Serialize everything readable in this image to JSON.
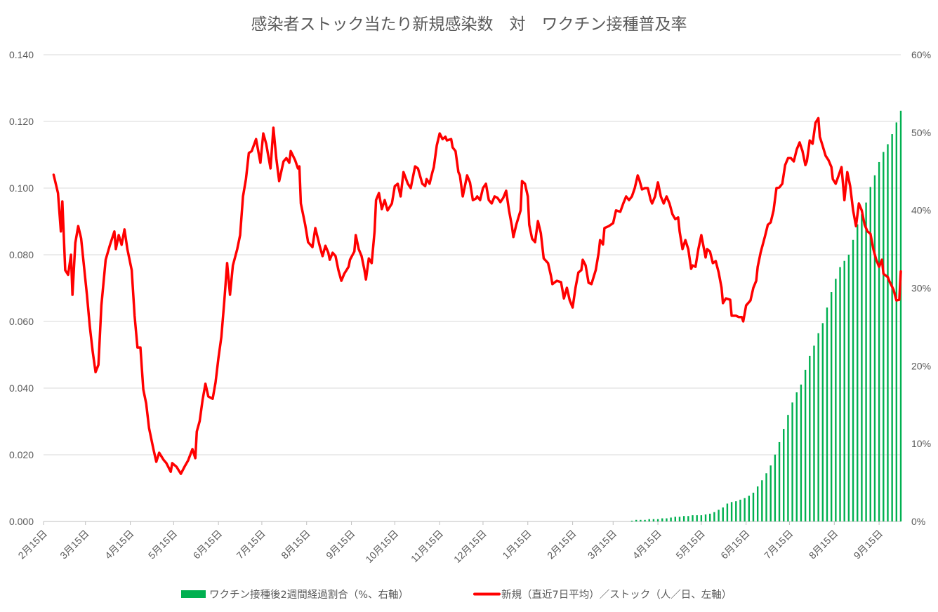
{
  "chart_data": {
    "type": "bar+line",
    "title": "感染者ストック当たり新規感染数　対　ワクチン接種普及率",
    "x_tick_labels": [
      "2月15日",
      "3月15日",
      "4月15日",
      "5月15日",
      "6月15日",
      "7月15日",
      "8月15日",
      "9月15日",
      "10月15日",
      "11月15日",
      "12月15日",
      "1月15日",
      "2月15日",
      "3月15日",
      "4月15日",
      "5月15日",
      "6月15日",
      "7月15日",
      "8月15日",
      "9月15日"
    ],
    "x_tick_dates": [
      "2020-02-15",
      "2020-03-15",
      "2020-04-15",
      "2020-05-15",
      "2020-06-15",
      "2020-07-15",
      "2020-08-15",
      "2020-09-15",
      "2020-10-15",
      "2020-11-15",
      "2020-12-15",
      "2021-01-15",
      "2021-02-15",
      "2021-03-15",
      "2021-04-15",
      "2021-05-15",
      "2021-06-15",
      "2021-07-15",
      "2021-08-15",
      "2021-09-15"
    ],
    "xlim": [
      "2020-02-15",
      "2021-09-30"
    ],
    "y_left": {
      "ylim": [
        0,
        0.14
      ],
      "tick_labels": [
        "0.000",
        "0.020",
        "0.040",
        "0.060",
        "0.080",
        "0.100",
        "0.120",
        "0.140"
      ]
    },
    "y_right": {
      "ylim": [
        0,
        60
      ],
      "tick_labels": [
        "0%",
        "10%",
        "20%",
        "30%",
        "40%",
        "50%",
        "60%"
      ]
    },
    "grid": true,
    "legend_position": "bottom",
    "colors": {
      "bars": "#00b050",
      "line": "#ff0000",
      "grid": "#d9d9d9",
      "text": "#595959"
    },
    "series": [
      {
        "name": "ワクチン接種後2週間経過割合（%、右軸）",
        "type": "bar",
        "axis": "right",
        "x": [
          "2021-03-28",
          "2021-03-31",
          "2021-04-03",
          "2021-04-06",
          "2021-04-09",
          "2021-04-12",
          "2021-04-15",
          "2021-04-18",
          "2021-04-21",
          "2021-04-24",
          "2021-04-27",
          "2021-04-30",
          "2021-05-03",
          "2021-05-06",
          "2021-05-09",
          "2021-05-12",
          "2021-05-15",
          "2021-05-18",
          "2021-05-21",
          "2021-05-24",
          "2021-05-27",
          "2021-05-30",
          "2021-06-02",
          "2021-06-05",
          "2021-06-08",
          "2021-06-11",
          "2021-06-14",
          "2021-06-17",
          "2021-06-20",
          "2021-06-23",
          "2021-06-26",
          "2021-06-29",
          "2021-07-02",
          "2021-07-05",
          "2021-07-08",
          "2021-07-11",
          "2021-07-14",
          "2021-07-17",
          "2021-07-20",
          "2021-07-23",
          "2021-07-26",
          "2021-07-29",
          "2021-08-01",
          "2021-08-04",
          "2021-08-07",
          "2021-08-10",
          "2021-08-13",
          "2021-08-16",
          "2021-08-19",
          "2021-08-22",
          "2021-08-25",
          "2021-08-28",
          "2021-08-31",
          "2021-09-03",
          "2021-09-06",
          "2021-09-09",
          "2021-09-12",
          "2021-09-15",
          "2021-09-18",
          "2021-09-21",
          "2021-09-24",
          "2021-09-27",
          "2021-09-30"
        ],
        "values": [
          0.1,
          0.2,
          0.2,
          0.2,
          0.3,
          0.3,
          0.3,
          0.4,
          0.4,
          0.5,
          0.6,
          0.6,
          0.7,
          0.7,
          0.8,
          0.8,
          0.8,
          0.9,
          1.0,
          1.2,
          1.5,
          1.8,
          2.3,
          2.5,
          2.6,
          2.8,
          3.0,
          3.3,
          3.7,
          4.5,
          5.3,
          6.2,
          7.2,
          8.6,
          10.2,
          11.9,
          13.7,
          15.3,
          16.6,
          17.6,
          19.5,
          21.3,
          22.6,
          24.2,
          25.5,
          27.5,
          29.5,
          31.2,
          32.7,
          33.5,
          34.3,
          36.2,
          38.2,
          39.5,
          41.0,
          43.0,
          44.5,
          46.2,
          47.5,
          48.5,
          49.8,
          51.3,
          52.8
        ]
      },
      {
        "name": "新規（直近7日平均）／ストック（人／日、左軸）",
        "type": "line",
        "axis": "left",
        "x": [
          "2020-02-22",
          "2020-02-25",
          "2020-02-27",
          "2020-02-28",
          "2020-03-01",
          "2020-03-03",
          "2020-03-05",
          "2020-03-06",
          "2020-03-08",
          "2020-03-10",
          "2020-03-12",
          "2020-03-14",
          "2020-03-16",
          "2020-03-18",
          "2020-03-20",
          "2020-03-22",
          "2020-03-24",
          "2020-03-26",
          "2020-03-29",
          "2020-04-01",
          "2020-04-04",
          "2020-04-05",
          "2020-04-07",
          "2020-04-09",
          "2020-04-11",
          "2020-04-13",
          "2020-04-16",
          "2020-04-18",
          "2020-04-20",
          "2020-04-22",
          "2020-04-24",
          "2020-04-26",
          "2020-04-28",
          "2020-05-01",
          "2020-05-03",
          "2020-05-05",
          "2020-05-08",
          "2020-05-10",
          "2020-05-13",
          "2020-05-14",
          "2020-05-17",
          "2020-05-20",
          "2020-05-23",
          "2020-05-25",
          "2020-05-28",
          "2020-05-30",
          "2020-05-31",
          "2020-06-02",
          "2020-06-04",
          "2020-06-06",
          "2020-06-08",
          "2020-06-11",
          "2020-06-13",
          "2020-06-15",
          "2020-06-17",
          "2020-06-19",
          "2020-06-21",
          "2020-06-23",
          "2020-06-25",
          "2020-06-28",
          "2020-06-30",
          "2020-07-02",
          "2020-07-04",
          "2020-07-06",
          "2020-07-08",
          "2020-07-11",
          "2020-07-14",
          "2020-07-16",
          "2020-07-18",
          "2020-07-21",
          "2020-07-23",
          "2020-07-25",
          "2020-07-27",
          "2020-07-30",
          "2020-08-01",
          "2020-08-03",
          "2020-08-04",
          "2020-08-07",
          "2020-08-09",
          "2020-08-10",
          "2020-08-11",
          "2020-08-14",
          "2020-08-16",
          "2020-08-19",
          "2020-08-21",
          "2020-08-24",
          "2020-08-26",
          "2020-08-28",
          "2020-08-30",
          "2020-08-31",
          "2020-09-02",
          "2020-09-04",
          "2020-09-06",
          "2020-09-08",
          "2020-09-10",
          "2020-09-13",
          "2020-09-14",
          "2020-09-17",
          "2020-09-18",
          "2020-09-20",
          "2020-09-22",
          "2020-09-24",
          "2020-09-25",
          "2020-09-27",
          "2020-09-29",
          "2020-10-01",
          "2020-10-02",
          "2020-10-04",
          "2020-10-06",
          "2020-10-08",
          "2020-10-10",
          "2020-10-13",
          "2020-10-15",
          "2020-10-17",
          "2020-10-19",
          "2020-10-21",
          "2020-10-24",
          "2020-10-26",
          "2020-10-29",
          "2020-10-31",
          "2020-11-03",
          "2020-11-05",
          "2020-11-06",
          "2020-11-08",
          "2020-11-10",
          "2020-11-11",
          "2020-11-13",
          "2020-11-15",
          "2020-11-17",
          "2020-11-19",
          "2020-11-20",
          "2020-11-23",
          "2020-11-24",
          "2020-11-26",
          "2020-11-28",
          "2020-11-29",
          "2020-12-01",
          "2020-12-04",
          "2020-12-06",
          "2020-12-08",
          "2020-12-10",
          "2020-12-11",
          "2020-12-13",
          "2020-12-15",
          "2020-12-17",
          "2020-12-19",
          "2020-12-21",
          "2020-12-23",
          "2020-12-25",
          "2020-12-27",
          "2020-12-29",
          "2020-12-31",
          "2021-01-02",
          "2021-01-04",
          "2021-01-05",
          "2021-01-07",
          "2021-01-10",
          "2021-01-11",
          "2021-01-13",
          "2021-01-15",
          "2021-01-16",
          "2021-01-18",
          "2021-01-20",
          "2021-01-22",
          "2021-01-24",
          "2021-01-26",
          "2021-01-29",
          "2021-01-31",
          "2021-02-01",
          "2021-02-04",
          "2021-02-07",
          "2021-02-09",
          "2021-02-11",
          "2021-02-13",
          "2021-02-15",
          "2021-02-17",
          "2021-02-19",
          "2021-02-21",
          "2021-02-22",
          "2021-02-24",
          "2021-02-26",
          "2021-02-28",
          "2021-03-03",
          "2021-03-05",
          "2021-03-06",
          "2021-03-08",
          "2021-03-09",
          "2021-03-12",
          "2021-03-15",
          "2021-03-17",
          "2021-03-20",
          "2021-03-22",
          "2021-03-24",
          "2021-03-26",
          "2021-03-28",
          "2021-03-30",
          "2021-04-01",
          "2021-04-02",
          "2021-04-04",
          "2021-04-06",
          "2021-04-08",
          "2021-04-10",
          "2021-04-11",
          "2021-04-13",
          "2021-04-15",
          "2021-04-17",
          "2021-04-19",
          "2021-04-21",
          "2021-04-23",
          "2021-04-25",
          "2021-04-27",
          "2021-04-29",
          "2021-04-30",
          "2021-05-02",
          "2021-05-04",
          "2021-05-06",
          "2021-05-08",
          "2021-05-09",
          "2021-05-11",
          "2021-05-13",
          "2021-05-15",
          "2021-05-18",
          "2021-05-19",
          "2021-05-21",
          "2021-05-23",
          "2021-05-25",
          "2021-05-27",
          "2021-05-29",
          "2021-05-30",
          "2021-06-01",
          "2021-06-04",
          "2021-06-05",
          "2021-06-08",
          "2021-06-10",
          "2021-06-12",
          "2021-06-13",
          "2021-06-15",
          "2021-06-18",
          "2021-06-20",
          "2021-06-22",
          "2021-06-23",
          "2021-06-25",
          "2021-06-28",
          "2021-06-30",
          "2021-07-02",
          "2021-07-04",
          "2021-07-06",
          "2021-07-08",
          "2021-07-10",
          "2021-07-12",
          "2021-07-14",
          "2021-07-16",
          "2021-07-18",
          "2021-07-20",
          "2021-07-22",
          "2021-07-24",
          "2021-07-26",
          "2021-07-27",
          "2021-07-29",
          "2021-07-31",
          "2021-08-02",
          "2021-08-04",
          "2021-08-05",
          "2021-08-07",
          "2021-08-09",
          "2021-08-11",
          "2021-08-13",
          "2021-08-14",
          "2021-08-16",
          "2021-08-18",
          "2021-08-20",
          "2021-08-22",
          "2021-08-24",
          "2021-08-26",
          "2021-08-28",
          "2021-08-30",
          "2021-09-01",
          "2021-09-03",
          "2021-09-05",
          "2021-09-07",
          "2021-09-09",
          "2021-09-11",
          "2021-09-13",
          "2021-09-15",
          "2021-09-17",
          "2021-09-18",
          "2021-09-21",
          "2021-09-22",
          "2021-09-25",
          "2021-09-27",
          "2021-09-29",
          "2021-09-30"
        ],
        "values": [
          0.104,
          0.0985,
          0.087,
          0.096,
          0.0754,
          0.074,
          0.08,
          0.068,
          0.0836,
          0.0886,
          0.085,
          0.0764,
          0.068,
          0.0585,
          0.051,
          0.0448,
          0.047,
          0.0648,
          0.0785,
          0.083,
          0.087,
          0.0817,
          0.0859,
          0.083,
          0.0876,
          0.0817,
          0.0754,
          0.0617,
          0.0522,
          0.0522,
          0.0396,
          0.0354,
          0.028,
          0.0217,
          0.0179,
          0.0206,
          0.0185,
          0.0175,
          0.0149,
          0.0175,
          0.0164,
          0.0143,
          0.0168,
          0.0183,
          0.0217,
          0.019,
          0.027,
          0.0301,
          0.0364,
          0.0413,
          0.0375,
          0.0368,
          0.0417,
          0.049,
          0.0554,
          0.0659,
          0.0775,
          0.068,
          0.0768,
          0.0817,
          0.0859,
          0.0975,
          0.1027,
          0.1105,
          0.1111,
          0.1147,
          0.1076,
          0.1164,
          0.1133,
          0.1059,
          0.1181,
          0.109,
          0.1021,
          0.108,
          0.109,
          0.1076,
          0.1111,
          0.1084,
          0.1059,
          0.1065,
          0.0954,
          0.089,
          0.0838,
          0.0823,
          0.088,
          0.0827,
          0.0796,
          0.0827,
          0.0806,
          0.0785,
          0.0806,
          0.0796,
          0.0754,
          0.0722,
          0.0743,
          0.0764,
          0.0785,
          0.081,
          0.0859,
          0.0817,
          0.0796,
          0.0754,
          0.0726,
          0.0789,
          0.0775,
          0.087,
          0.0964,
          0.0985,
          0.0937,
          0.0964,
          0.0933,
          0.0954,
          0.1006,
          0.1013,
          0.0975,
          0.1048,
          0.1013,
          0.1,
          0.1065,
          0.1059,
          0.1013,
          0.1006,
          0.1027,
          0.1013,
          0.1048,
          0.1063,
          0.1128,
          0.1164,
          0.1147,
          0.1154,
          0.1143,
          0.1147,
          0.1122,
          0.1111,
          0.1048,
          0.1038,
          0.0975,
          0.1038,
          0.1017,
          0.0964,
          0.0968,
          0.0975,
          0.0964,
          0.1,
          0.1013,
          0.0964,
          0.0954,
          0.0975,
          0.0971,
          0.0958,
          0.0971,
          0.0992,
          0.0933,
          0.0886,
          0.0853,
          0.089,
          0.0933,
          0.1021,
          0.1013,
          0.0975,
          0.089,
          0.0848,
          0.0838,
          0.0901,
          0.0865,
          0.0789,
          0.0775,
          0.0737,
          0.0712,
          0.0722,
          0.0718,
          0.0669,
          0.0701,
          0.0663,
          0.0642,
          0.0701,
          0.0747,
          0.0754,
          0.0785,
          0.0768,
          0.0716,
          0.0712,
          0.0754,
          0.0806,
          0.0844,
          0.0831,
          0.088,
          0.0886,
          0.0895,
          0.0933,
          0.0929,
          0.0954,
          0.0975,
          0.0964,
          0.0975,
          0.1,
          0.1038,
          0.1027,
          0.0996,
          0.1,
          0.1,
          0.0964,
          0.0954,
          0.0975,
          0.1017,
          0.0975,
          0.0954,
          0.0975,
          0.0954,
          0.0922,
          0.0907,
          0.0912,
          0.087,
          0.0817,
          0.0844,
          0.0817,
          0.0758,
          0.0768,
          0.0764,
          0.0817,
          0.0859,
          0.0792,
          0.0817,
          0.081,
          0.0775,
          0.0781,
          0.0747,
          0.0701,
          0.0655,
          0.0669,
          0.0665,
          0.0617,
          0.0617,
          0.0613,
          0.0613,
          0.06,
          0.0648,
          0.0663,
          0.0701,
          0.0722,
          0.0764,
          0.0806,
          0.0855,
          0.089,
          0.0897,
          0.0933,
          0.1,
          0.1002,
          0.1013,
          0.1069,
          0.109,
          0.109,
          0.108,
          0.1116,
          0.1137,
          0.1111,
          0.1069,
          0.108,
          0.1143,
          0.1133,
          0.1196,
          0.121,
          0.1154,
          0.1126,
          0.1097,
          0.1084,
          0.1063,
          0.1027,
          0.1013,
          0.1038,
          0.1063,
          0.0964,
          0.1048,
          0.1006,
          0.0933,
          0.0886,
          0.0954,
          0.0933,
          0.089,
          0.087,
          0.0863,
          0.0817,
          0.0785,
          0.0764,
          0.0785,
          0.0743,
          0.0733,
          0.0722,
          0.0695,
          0.0663,
          0.0665,
          0.075
        ]
      }
    ]
  }
}
